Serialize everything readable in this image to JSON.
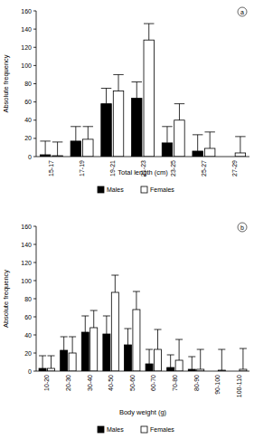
{
  "chart_data": [
    {
      "type": "bar",
      "annotations": [
        "a"
      ],
      "x_label": "Total length (cm)",
      "y_label": "Absolute frequency",
      "categories": [
        "15-17",
        "17-19",
        "19-21",
        "21-23",
        "23-25",
        "25-27",
        "27-29"
      ],
      "series": [
        {
          "name": "Males",
          "color": "#000000",
          "values": [
            2,
            17,
            58,
            64,
            15,
            6,
            0
          ],
          "errors": [
            15,
            16,
            17,
            18,
            18,
            18,
            null
          ]
        },
        {
          "name": "Females",
          "color": "#ffffff",
          "values": [
            1,
            19,
            72,
            128,
            40,
            9,
            4
          ],
          "errors": [
            15,
            14,
            18,
            18,
            18,
            18,
            18
          ]
        }
      ],
      "ylim": [
        0,
        160
      ],
      "yticks": [
        0,
        20,
        40,
        60,
        80,
        100,
        120,
        140,
        160
      ],
      "grid": false,
      "legend": "bottom"
    },
    {
      "type": "bar",
      "annotations": [
        "b"
      ],
      "x_label": "Body weight (g)",
      "y_label": "Absolute frequency",
      "categories": [
        "10-20",
        "20-30",
        "30-40",
        "40-50",
        "50-60",
        "60-70",
        "70-80",
        "80-90",
        "90-100",
        "100-110"
      ],
      "series": [
        {
          "name": "Males",
          "color": "#000000",
          "values": [
            3,
            23,
            43,
            41,
            29,
            8,
            4,
            2,
            0,
            0
          ],
          "errors": [
            14,
            15,
            18,
            20,
            18,
            16,
            14,
            14,
            null,
            null
          ]
        },
        {
          "name": "Females",
          "color": "#ffffff",
          "values": [
            3,
            20,
            48,
            87,
            68,
            24,
            12,
            2,
            1,
            2
          ],
          "errors": [
            14,
            18,
            19,
            19,
            20,
            22,
            23,
            22,
            23,
            23
          ]
        }
      ],
      "ylim": [
        0,
        160
      ],
      "yticks": [
        0,
        20,
        40,
        60,
        80,
        100,
        120,
        140,
        160
      ],
      "grid": false,
      "legend": "bottom"
    }
  ]
}
